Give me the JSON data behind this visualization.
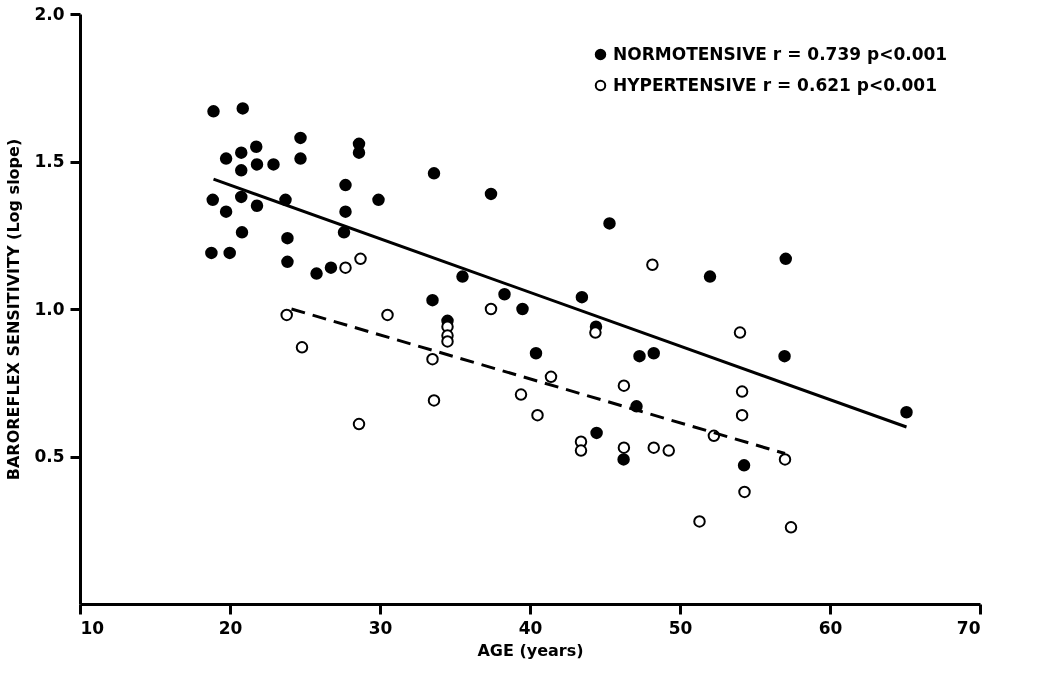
{
  "chart_data": {
    "type": "scatter",
    "xlabel": "AGE (years)",
    "ylabel": "BAROREFLEX SENSITIVITY (Log slope)",
    "xlim": [
      10,
      70
    ],
    "xticks": [
      10,
      20,
      30,
      40,
      50,
      60,
      70
    ],
    "ylim": [
      0,
      2.0
    ],
    "yticks": [
      0.5,
      {
        "value": 1.0,
        "label": "1.0"
      },
      1.5,
      {
        "value": 2.0,
        "label": "2.0"
      }
    ],
    "grid": false,
    "legend": "top right",
    "series": [
      {
        "name": "NORMOTENSIVE r = 0.739 p<0.001",
        "color": "#000000",
        "marker": "circle",
        "x": [
          18.9,
          20.85,
          19.74,
          20.75,
          21.75,
          20.75,
          21.8,
          22.9,
          24.7,
          24.7,
          28.6,
          28.6,
          33.6,
          37.4,
          18.85,
          19.74,
          20.75,
          21.8,
          23.7,
          27.7,
          27.7,
          27.6,
          29.9,
          20.8,
          18.76,
          19.98,
          23.83,
          23.83,
          25.77,
          26.73,
          35.5,
          33.5,
          38.3,
          39.5,
          34.5,
          40.4,
          45.3,
          57.05,
          52.0,
          43.46,
          44.4,
          47.3,
          48.25,
          56.97,
          47.1,
          44.44,
          46.24,
          54.27,
          65.1
        ],
        "values": [
          1.67,
          1.68,
          1.51,
          1.53,
          1.55,
          1.47,
          1.49,
          1.49,
          1.58,
          1.51,
          1.56,
          1.53,
          1.46,
          1.39,
          1.37,
          1.33,
          1.38,
          1.35,
          1.37,
          1.42,
          1.33,
          1.26,
          1.37,
          1.26,
          1.19,
          1.19,
          1.24,
          1.16,
          1.12,
          1.14,
          1.11,
          1.03,
          1.05,
          1.0,
          0.96,
          0.85,
          1.29,
          1.17,
          1.11,
          1.04,
          0.94,
          0.84,
          0.85,
          0.84,
          0.67,
          0.58,
          0.49,
          0.47,
          0.65
        ]
      },
      {
        "name": "HYPERTENSIVE r = 0.621 p<0.001",
        "color": "#000000",
        "marker": "circle",
        "x": [
          28.7,
          27.7,
          23.78,
          30.5,
          34.5,
          34.5,
          34.5,
          37.4,
          24.8,
          33.5,
          33.6,
          28.6,
          39.4,
          40.5,
          48.16,
          54.0,
          44.36,
          41.4,
          46.26,
          54.14,
          54.14,
          52.26,
          43.4,
          43.4,
          46.26,
          48.25,
          49.25,
          57.0,
          54.3,
          51.3,
          57.4
        ],
        "values": [
          1.17,
          1.14,
          0.98,
          0.98,
          0.94,
          0.91,
          0.89,
          1.0,
          0.87,
          0.83,
          0.69,
          0.61,
          0.71,
          0.64,
          1.15,
          0.92,
          0.92,
          0.77,
          0.74,
          0.72,
          0.64,
          0.57,
          0.55,
          0.52,
          0.53,
          0.53,
          0.52,
          0.49,
          0.38,
          0.28,
          0.26
        ]
      },
      {
        "type": "line",
        "color": "#000000",
        "line_style": "solid",
        "marker": "none",
        "x": [
          18.9,
          65.1
        ],
        "values": [
          1.44,
          0.6
        ]
      },
      {
        "type": "line",
        "color": "#000000",
        "line_style": "dashed",
        "marker": "none",
        "x": [
          24.1,
          57.0
        ],
        "values": [
          1.0,
          0.51
        ]
      }
    ]
  }
}
